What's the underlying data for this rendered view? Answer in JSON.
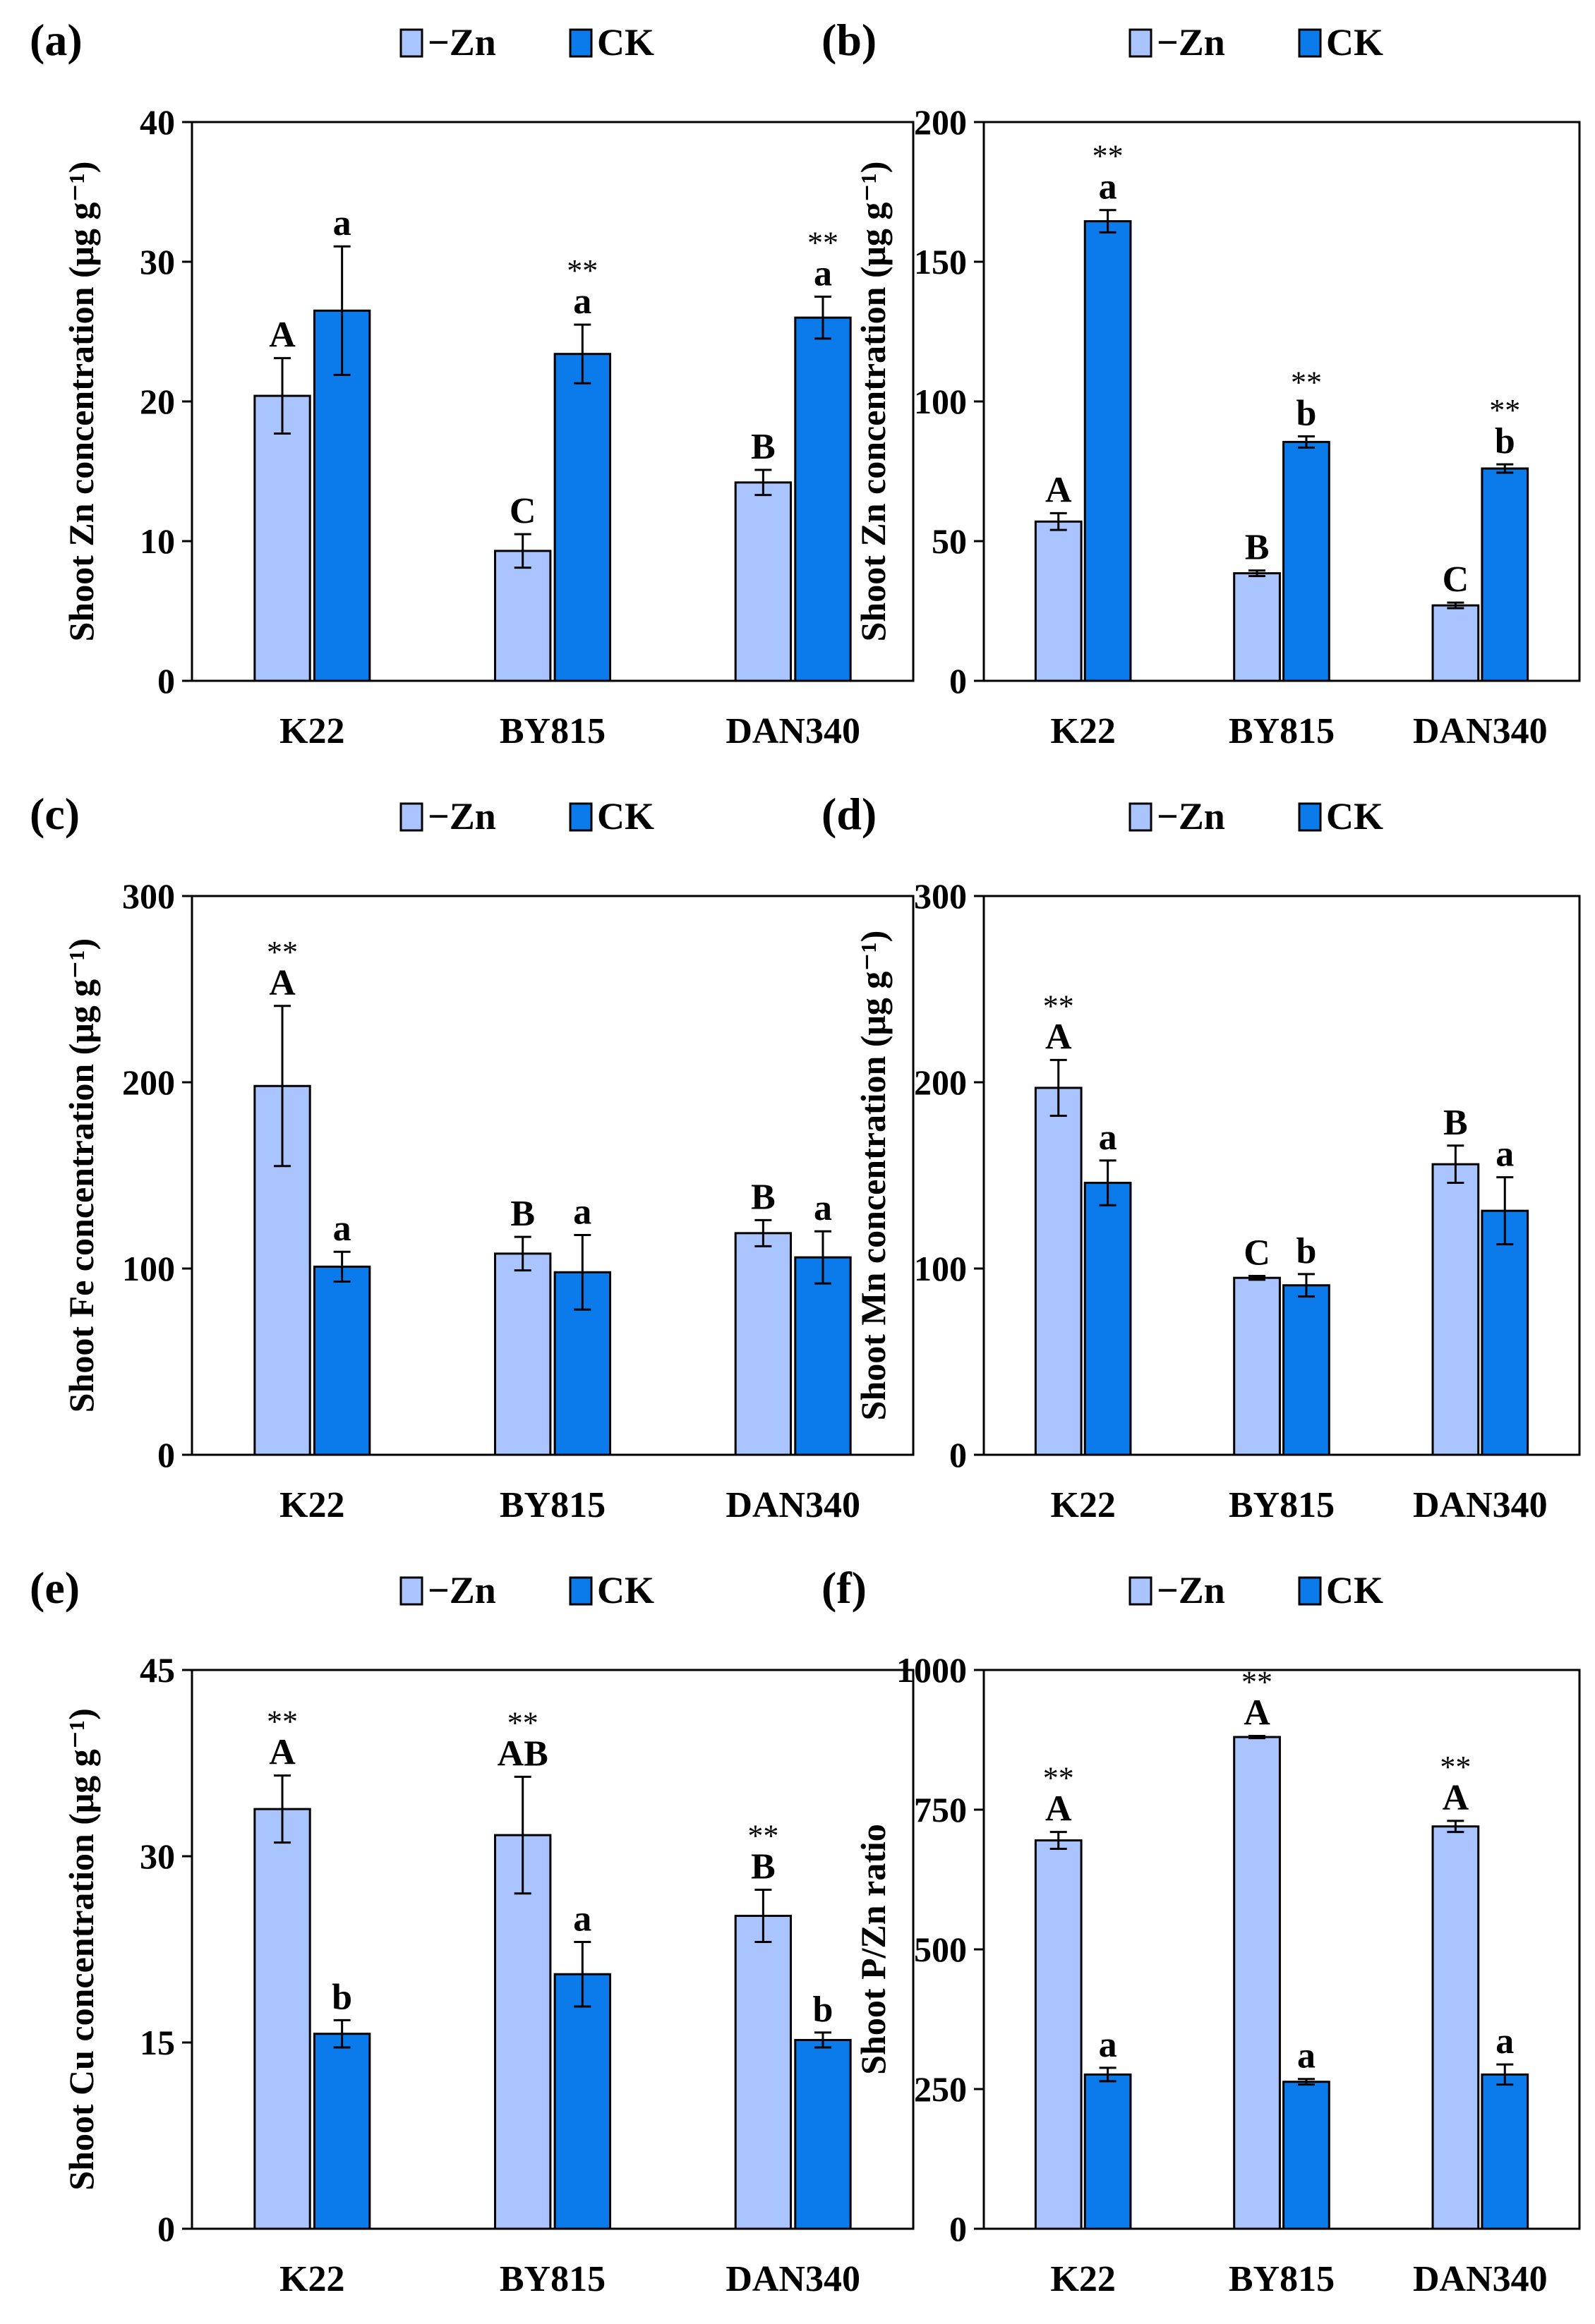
{
  "colors": {
    "minus_zn": "#a9c4ff",
    "ck": "#0b7bec",
    "stroke": "#000000"
  },
  "chart_data": [
    {
      "type": "bar",
      "panel": "(a)",
      "ylabel": "Shoot Zn concentration (μg g⁻¹)",
      "ylim": [
        0,
        40
      ],
      "yticks": [
        0,
        10,
        20,
        30,
        40
      ],
      "categories": [
        "K22",
        "BY815",
        "DAN340"
      ],
      "legend": [
        "−Zn",
        "CK"
      ],
      "legend_position": "top-center",
      "series": [
        {
          "name": "−Zn",
          "values": [
            20.4,
            9.3,
            14.2
          ],
          "errors": [
            2.7,
            1.2,
            0.9
          ],
          "letters": [
            "A",
            "C",
            "B"
          ],
          "stars": [
            "",
            "",
            ""
          ]
        },
        {
          "name": "CK",
          "values": [
            26.5,
            23.4,
            26.0
          ],
          "errors": [
            4.6,
            2.1,
            1.5
          ],
          "letters": [
            "a",
            "a",
            "a"
          ],
          "stars": [
            "",
            "**",
            "**"
          ]
        }
      ]
    },
    {
      "type": "bar",
      "panel": "(b)",
      "ylabel": "Shoot Zn concentration (μg g⁻¹)",
      "ylim": [
        0,
        200
      ],
      "yticks": [
        0,
        50,
        100,
        150,
        200
      ],
      "categories": [
        "K22",
        "BY815",
        "DAN340"
      ],
      "legend": [
        "−Zn",
        "CK"
      ],
      "legend_position": "top-center",
      "series": [
        {
          "name": "−Zn",
          "values": [
            57,
            38.5,
            27
          ],
          "errors": [
            3,
            1,
            1
          ],
          "letters": [
            "A",
            "B",
            "C"
          ],
          "stars": [
            "",
            "",
            ""
          ]
        },
        {
          "name": "CK",
          "values": [
            164.5,
            85.5,
            76
          ],
          "errors": [
            4,
            2,
            1.5
          ],
          "letters": [
            "a",
            "b",
            "b"
          ],
          "stars": [
            "**",
            "**",
            "**"
          ]
        }
      ]
    },
    {
      "type": "bar",
      "panel": "(c)",
      "ylabel": "Shoot Fe concentration (μg g⁻¹)",
      "ylim": [
        0,
        300
      ],
      "yticks": [
        0,
        100,
        200,
        300
      ],
      "categories": [
        "K22",
        "BY815",
        "DAN340"
      ],
      "legend": [
        "−Zn",
        "CK"
      ],
      "legend_position": "top-center",
      "series": [
        {
          "name": "−Zn",
          "values": [
            198,
            108,
            119
          ],
          "errors": [
            43,
            9,
            7
          ],
          "letters": [
            "A",
            "B",
            "B"
          ],
          "stars": [
            "**",
            "",
            ""
          ]
        },
        {
          "name": "CK",
          "values": [
            101,
            98,
            106
          ],
          "errors": [
            8,
            20,
            14
          ],
          "letters": [
            "a",
            "a",
            "a"
          ],
          "stars": [
            "",
            "",
            ""
          ]
        }
      ]
    },
    {
      "type": "bar",
      "panel": "(d)",
      "ylabel": "Shoot Mn concentration (μg g⁻¹)",
      "ylim": [
        0,
        300
      ],
      "yticks": [
        0,
        100,
        200,
        300
      ],
      "categories": [
        "K22",
        "BY815",
        "DAN340"
      ],
      "legend": [
        "−Zn",
        "CK"
      ],
      "legend_position": "top-center",
      "series": [
        {
          "name": "−Zn",
          "values": [
            197,
            95,
            156
          ],
          "errors": [
            15,
            1,
            10
          ],
          "letters": [
            "A",
            "C",
            "B"
          ],
          "stars": [
            "**",
            "",
            ""
          ]
        },
        {
          "name": "CK",
          "values": [
            146,
            91,
            131
          ],
          "errors": [
            12,
            6,
            18
          ],
          "letters": [
            "a",
            "b",
            "a"
          ],
          "stars": [
            "",
            "",
            ""
          ]
        }
      ]
    },
    {
      "type": "bar",
      "panel": "(e)",
      "ylabel": "Shoot Cu concentration (μg g⁻¹)",
      "ylim": [
        0,
        45
      ],
      "yticks": [
        0,
        15,
        30,
        45
      ],
      "categories": [
        "K22",
        "BY815",
        "DAN340"
      ],
      "legend": [
        "−Zn",
        "CK"
      ],
      "legend_position": "top-center",
      "series": [
        {
          "name": "−Zn",
          "values": [
            33.8,
            31.7,
            25.2
          ],
          "errors": [
            2.7,
            4.7,
            2.1
          ],
          "letters": [
            "A",
            "AB",
            "B"
          ],
          "stars": [
            "**",
            "**",
            "**"
          ]
        },
        {
          "name": "CK",
          "values": [
            15.7,
            20.5,
            15.2
          ],
          "errors": [
            1.1,
            2.6,
            0.6
          ],
          "letters": [
            "b",
            "a",
            "b"
          ],
          "stars": [
            "",
            "",
            ""
          ]
        }
      ]
    },
    {
      "type": "bar",
      "panel": "(f)",
      "ylabel": "Shoot P/Zn ratio",
      "ylim": [
        0,
        1000
      ],
      "yticks": [
        0,
        250,
        500,
        750,
        1000
      ],
      "categories": [
        "K22",
        "BY815",
        "DAN340"
      ],
      "legend": [
        "−Zn",
        "CK"
      ],
      "legend_position": "top-center",
      "series": [
        {
          "name": "−Zn",
          "values": [
            695,
            880,
            720
          ],
          "errors": [
            15,
            2,
            10
          ],
          "letters": [
            "A",
            "A",
            "A"
          ],
          "stars": [
            "**",
            "**",
            "**"
          ]
        },
        {
          "name": "CK",
          "values": [
            276,
            263,
            276
          ],
          "errors": [
            12,
            5,
            18
          ],
          "letters": [
            "a",
            "a",
            "a"
          ],
          "stars": [
            "",
            "",
            ""
          ]
        }
      ]
    }
  ]
}
